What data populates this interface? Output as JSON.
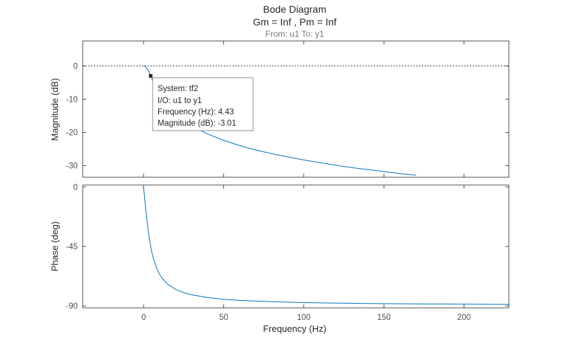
{
  "chart_data": {
    "type": "line",
    "title": "Bode Diagram",
    "subtitle": "Gm = Inf ,  Pm = Inf",
    "io_label": "From: u1  To: y1",
    "xlabel": "Frequency  (Hz)",
    "xlim": [
      -38,
      228
    ],
    "xticks": [
      0,
      50,
      100,
      150,
      200
    ],
    "xtick_labels": [
      "0",
      "50",
      "100",
      "150",
      "200"
    ],
    "line_color": "#0072bd",
    "reference_line": {
      "value": 0,
      "style": "dotted",
      "color": "#000000"
    },
    "panels": [
      {
        "name": "magnitude",
        "ylabel": "Magnitude (dB)",
        "ylim": [
          -33.5,
          7.5
        ],
        "yticks": [
          0,
          -10,
          -20,
          -30
        ],
        "ytick_labels": [
          "0",
          "-10",
          "-20",
          "-30"
        ],
        "series": {
          "x": [
            0,
            1,
            2,
            3,
            4,
            4.43,
            5,
            6,
            8,
            10,
            12,
            15,
            20,
            25,
            30,
            40,
            50,
            60,
            70,
            80,
            90,
            100,
            110,
            120,
            130,
            140,
            150,
            160,
            170
          ],
          "y": [
            0,
            -0.19,
            -0.7,
            -1.4,
            -2.55,
            -3.01,
            -3.58,
            -4.74,
            -7.1,
            -8.9,
            -10.4,
            -12.3,
            -14.8,
            -16.6,
            -18.1,
            -20.5,
            -22.4,
            -24.0,
            -25.3,
            -26.4,
            -27.4,
            -28.3,
            -29.1,
            -29.9,
            -30.6,
            -31.2,
            -31.8,
            -32.4,
            -32.9
          ]
        }
      },
      {
        "name": "phase",
        "ylabel": "Phase (deg)",
        "ylim": [
          -91.5,
          1.5
        ],
        "yticks": [
          0,
          -45,
          -90
        ],
        "ytick_labels": [
          "0",
          "-45",
          "-90"
        ],
        "series": {
          "x": [
            0,
            1,
            2,
            3,
            4,
            4.43,
            5,
            6,
            8,
            10,
            12,
            15,
            20,
            25,
            30,
            40,
            50,
            60,
            80,
            100,
            120,
            150,
            180,
            200,
            228
          ],
          "y": [
            0,
            -12.7,
            -24.3,
            -34.1,
            -42.1,
            -45,
            -48.5,
            -53.6,
            -61.0,
            -66.1,
            -69.7,
            -73.5,
            -77.5,
            -80.0,
            -81.6,
            -83.7,
            -85.0,
            -85.8,
            -86.8,
            -87.5,
            -87.9,
            -88.3,
            -88.6,
            -88.7,
            -88.9
          ]
        }
      }
    ],
    "datatip": {
      "x": 4.43,
      "y": -3.01,
      "lines": [
        "System: tf2",
        "I/O: u1 to y1",
        "Frequency (Hz): 4.43",
        "Magnitude (dB): -3.01"
      ]
    }
  }
}
